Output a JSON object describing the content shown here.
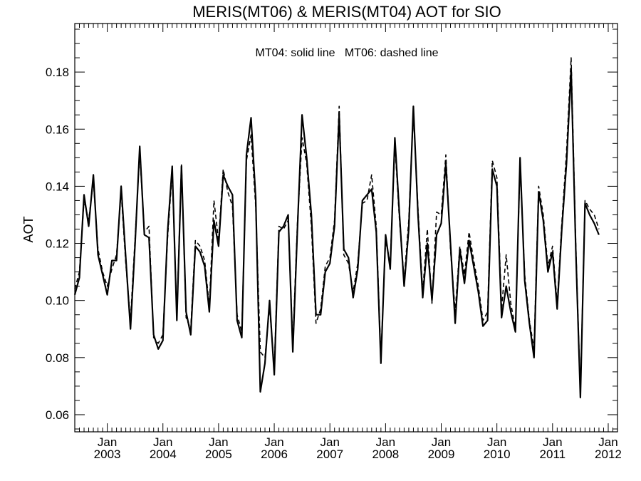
{
  "chart_data": {
    "type": "line",
    "title": "MERIS(MT06) & MERIS(MT04)  AOT for SIO",
    "ylabel": "AOT",
    "xlabel": "",
    "annotation": "MT04: solid line   MT06: dashed line",
    "xlim": [
      "2002-06",
      "2012-03"
    ],
    "ylim": [
      0.054,
      0.197
    ],
    "grid": false,
    "x_ticks": [
      {
        "date": "2003-01",
        "line1": "Jan",
        "line2": "2003"
      },
      {
        "date": "2004-01",
        "line1": "Jan",
        "line2": "2004"
      },
      {
        "date": "2005-01",
        "line1": "Jan",
        "line2": "2005"
      },
      {
        "date": "2006-01",
        "line1": "Jan",
        "line2": "2006"
      },
      {
        "date": "2007-01",
        "line1": "Jan",
        "line2": "2007"
      },
      {
        "date": "2008-01",
        "line1": "Jan",
        "line2": "2008"
      },
      {
        "date": "2009-01",
        "line1": "Jan",
        "line2": "2009"
      },
      {
        "date": "2010-01",
        "line1": "Jan",
        "line2": "2010"
      },
      {
        "date": "2011-01",
        "line1": "Jan",
        "line2": "2011"
      },
      {
        "date": "2012-01",
        "line1": "Jan",
        "line2": "2012"
      }
    ],
    "y_ticks": [
      "0.06",
      "0.08",
      "0.10",
      "0.12",
      "0.14",
      "0.16",
      "0.18"
    ],
    "series": [
      {
        "style": "solid",
        "color": "#000000",
        "points": [
          [
            "2002-06",
            0.102
          ],
          [
            "2002-07",
            0.108
          ],
          [
            "2002-08",
            0.137
          ],
          [
            "2002-09",
            0.126
          ],
          [
            "2002-10",
            0.144
          ],
          [
            "2002-11",
            0.116
          ],
          [
            "2002-12",
            0.109
          ],
          [
            "2003-01",
            0.102
          ],
          [
            "2003-02",
            0.114
          ],
          [
            "2003-03",
            0.114
          ],
          [
            "2003-04",
            0.14
          ],
          [
            "2003-05",
            0.115
          ],
          [
            "2003-06",
            0.09
          ],
          [
            "2003-07",
            0.12
          ],
          [
            "2003-08",
            0.154
          ],
          [
            "2003-09",
            0.123
          ],
          [
            "2003-10",
            0.122
          ],
          [
            "2003-11",
            0.088
          ],
          [
            "2003-12",
            0.083
          ],
          [
            "2004-01",
            0.086
          ],
          [
            "2004-02",
            0.124
          ],
          [
            "2004-03",
            0.147
          ],
          [
            "2004-04",
            0.093
          ],
          [
            "2004-05",
            0.147
          ],
          [
            "2004-06",
            0.096
          ],
          [
            "2004-07",
            0.088
          ],
          [
            "2004-08",
            0.119
          ],
          [
            "2004-09",
            0.117
          ],
          [
            "2004-10",
            0.112
          ],
          [
            "2004-11",
            0.096
          ],
          [
            "2004-12",
            0.128
          ],
          [
            "2005-01",
            0.119
          ],
          [
            "2005-02",
            0.144
          ],
          [
            "2005-03",
            0.14
          ],
          [
            "2005-04",
            0.137
          ],
          [
            "2005-05",
            0.093
          ],
          [
            "2005-06",
            0.087
          ],
          [
            "2005-07",
            0.151
          ],
          [
            "2005-08",
            0.164
          ],
          [
            "2005-09",
            0.136
          ],
          [
            "2005-10",
            0.068
          ],
          [
            "2005-11",
            0.078
          ],
          [
            "2005-12",
            0.1
          ],
          [
            "2006-01",
            0.074
          ],
          [
            "2006-02",
            0.124
          ],
          [
            "2006-03",
            0.126
          ],
          [
            "2006-04",
            0.13
          ],
          [
            "2006-05",
            0.082
          ],
          [
            "2006-06",
            0.125
          ],
          [
            "2006-07",
            0.165
          ],
          [
            "2006-08",
            0.15
          ],
          [
            "2006-09",
            0.13
          ],
          [
            "2006-10",
            0.095
          ],
          [
            "2006-11",
            0.095
          ],
          [
            "2006-12",
            0.11
          ],
          [
            "2007-01",
            0.113
          ],
          [
            "2007-02",
            0.126
          ],
          [
            "2007-03",
            0.165
          ],
          [
            "2007-04",
            0.118
          ],
          [
            "2007-05",
            0.115
          ],
          [
            "2007-06",
            0.101
          ],
          [
            "2007-07",
            0.111
          ],
          [
            "2007-08",
            0.135
          ],
          [
            "2007-09",
            0.137
          ],
          [
            "2007-10",
            0.139
          ],
          [
            "2007-11",
            0.124
          ],
          [
            "2007-12",
            0.078
          ],
          [
            "2008-01",
            0.123
          ],
          [
            "2008-02",
            0.111
          ],
          [
            "2008-03",
            0.157
          ],
          [
            "2008-04",
            0.13
          ],
          [
            "2008-05",
            0.105
          ],
          [
            "2008-06",
            0.125
          ],
          [
            "2008-07",
            0.168
          ],
          [
            "2008-08",
            0.13
          ],
          [
            "2008-09",
            0.101
          ],
          [
            "2008-10",
            0.12
          ],
          [
            "2008-11",
            0.1
          ],
          [
            "2008-12",
            0.123
          ],
          [
            "2009-01",
            0.127
          ],
          [
            "2009-02",
            0.148
          ],
          [
            "2009-03",
            0.12
          ],
          [
            "2009-04",
            0.092
          ],
          [
            "2009-05",
            0.118
          ],
          [
            "2009-06",
            0.106
          ],
          [
            "2009-07",
            0.121
          ],
          [
            "2009-08",
            0.112
          ],
          [
            "2009-09",
            0.103
          ],
          [
            "2009-10",
            0.091
          ],
          [
            "2009-11",
            0.093
          ],
          [
            "2009-12",
            0.146
          ],
          [
            "2010-01",
            0.14
          ],
          [
            "2010-02",
            0.094
          ],
          [
            "2010-03",
            0.105
          ],
          [
            "2010-04",
            0.096
          ],
          [
            "2010-05",
            0.089
          ],
          [
            "2010-06",
            0.15
          ],
          [
            "2010-07",
            0.107
          ],
          [
            "2010-08",
            0.092
          ],
          [
            "2010-09",
            0.08
          ],
          [
            "2010-10",
            0.138
          ],
          [
            "2010-11",
            0.128
          ],
          [
            "2010-12",
            0.11
          ],
          [
            "2011-01",
            0.117
          ],
          [
            "2011-02",
            0.097
          ],
          [
            "2011-03",
            0.125
          ],
          [
            "2011-04",
            0.148
          ],
          [
            "2011-05",
            0.181
          ],
          [
            "2011-06",
            0.118
          ],
          [
            "2011-07",
            0.066
          ],
          [
            "2011-08",
            0.134
          ],
          [
            "2011-09",
            0.13
          ],
          [
            "2011-10",
            0.127
          ],
          [
            "2011-11",
            0.123
          ]
        ]
      },
      {
        "style": "dashed",
        "color": "#000000",
        "points": [
          [
            "2002-06",
            0.104
          ],
          [
            "2002-07",
            0.11
          ],
          [
            "2002-08",
            0.135
          ],
          [
            "2002-09",
            0.128
          ],
          [
            "2002-10",
            0.142
          ],
          [
            "2002-11",
            0.118
          ],
          [
            "2002-12",
            0.11
          ],
          [
            "2003-01",
            0.105
          ],
          [
            "2003-02",
            0.111
          ],
          [
            "2003-03",
            0.116
          ],
          [
            "2003-04",
            0.138
          ],
          [
            "2003-05",
            0.113
          ],
          [
            "2003-06",
            0.093
          ],
          [
            "2003-07",
            0.122
          ],
          [
            "2003-08",
            0.152
          ],
          [
            "2003-09",
            0.124
          ],
          [
            "2003-10",
            0.126
          ],
          [
            "2003-11",
            0.087
          ],
          [
            "2003-12",
            0.085
          ],
          [
            "2004-01",
            0.088
          ],
          [
            "2004-02",
            0.122
          ],
          [
            "2004-03",
            0.145
          ],
          [
            "2004-04",
            0.095
          ],
          [
            "2004-05",
            0.148
          ],
          [
            "2004-06",
            0.094
          ],
          [
            "2004-07",
            0.09
          ],
          [
            "2004-08",
            0.121
          ],
          [
            "2004-09",
            0.119
          ],
          [
            "2004-10",
            0.114
          ],
          [
            "2004-11",
            0.098
          ],
          [
            "2004-12",
            0.135
          ],
          [
            "2005-01",
            0.121
          ],
          [
            "2005-02",
            0.146
          ],
          [
            "2005-03",
            0.138
          ],
          [
            "2005-04",
            0.133
          ],
          [
            "2005-05",
            0.095
          ],
          [
            "2005-06",
            0.089
          ],
          [
            "2005-07",
            0.149
          ],
          [
            "2005-08",
            0.158
          ],
          [
            "2005-09",
            0.133
          ],
          [
            "2005-10",
            0.082
          ],
          [
            "2005-11",
            0.08
          ],
          [
            "2005-12",
            0.098
          ],
          [
            "2006-01",
            0.076
          ],
          [
            "2006-02",
            0.126
          ],
          [
            "2006-03",
            0.125
          ],
          [
            "2006-04",
            0.128
          ],
          [
            "2006-05",
            0.085
          ],
          [
            "2006-06",
            0.127
          ],
          [
            "2006-07",
            0.157
          ],
          [
            "2006-08",
            0.148
          ],
          [
            "2006-09",
            0.126
          ],
          [
            "2006-10",
            0.092
          ],
          [
            "2006-11",
            0.097
          ],
          [
            "2006-12",
            0.112
          ],
          [
            "2007-01",
            0.115
          ],
          [
            "2007-02",
            0.128
          ],
          [
            "2007-03",
            0.168
          ],
          [
            "2007-04",
            0.116
          ],
          [
            "2007-05",
            0.113
          ],
          [
            "2007-06",
            0.103
          ],
          [
            "2007-07",
            0.113
          ],
          [
            "2007-08",
            0.134
          ],
          [
            "2007-09",
            0.135
          ],
          [
            "2007-10",
            0.144
          ],
          [
            "2007-11",
            0.126
          ],
          [
            "2007-12",
            0.08
          ],
          [
            "2008-01",
            0.121
          ],
          [
            "2008-02",
            0.113
          ],
          [
            "2008-03",
            0.155
          ],
          [
            "2008-04",
            0.128
          ],
          [
            "2008-05",
            0.107
          ],
          [
            "2008-06",
            0.128
          ],
          [
            "2008-07",
            0.166
          ],
          [
            "2008-08",
            0.132
          ],
          [
            "2008-09",
            0.103
          ],
          [
            "2008-10",
            0.125
          ],
          [
            "2008-11",
            0.099
          ],
          [
            "2008-12",
            0.131
          ],
          [
            "2009-01",
            0.13
          ],
          [
            "2009-02",
            0.151
          ],
          [
            "2009-03",
            0.118
          ],
          [
            "2009-04",
            0.096
          ],
          [
            "2009-05",
            0.119
          ],
          [
            "2009-06",
            0.109
          ],
          [
            "2009-07",
            0.124
          ],
          [
            "2009-08",
            0.114
          ],
          [
            "2009-09",
            0.105
          ],
          [
            "2009-10",
            0.093
          ],
          [
            "2009-11",
            0.096
          ],
          [
            "2009-12",
            0.149
          ],
          [
            "2010-01",
            0.143
          ],
          [
            "2010-02",
            0.097
          ],
          [
            "2010-03",
            0.116
          ],
          [
            "2010-04",
            0.099
          ],
          [
            "2010-05",
            0.09
          ],
          [
            "2010-06",
            0.148
          ],
          [
            "2010-07",
            0.109
          ],
          [
            "2010-08",
            0.093
          ],
          [
            "2010-09",
            0.083
          ],
          [
            "2010-10",
            0.14
          ],
          [
            "2010-11",
            0.13
          ],
          [
            "2010-12",
            0.112
          ],
          [
            "2011-01",
            0.119
          ],
          [
            "2011-02",
            0.099
          ],
          [
            "2011-03",
            0.127
          ],
          [
            "2011-04",
            0.152
          ],
          [
            "2011-05",
            0.185
          ],
          [
            "2011-06",
            0.12
          ],
          [
            "2011-07",
            0.067
          ],
          [
            "2011-08",
            0.135
          ],
          [
            "2011-09",
            0.132
          ],
          [
            "2011-10",
            0.13
          ],
          [
            "2011-11",
            0.125
          ]
        ]
      }
    ]
  }
}
